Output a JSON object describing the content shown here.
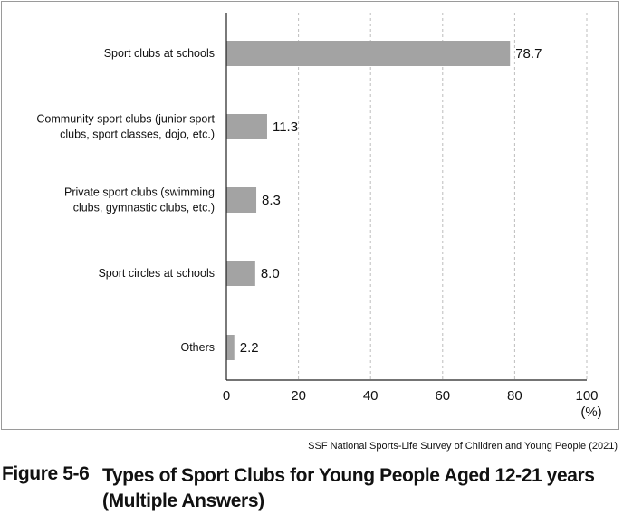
{
  "chart_data": {
    "type": "bar",
    "orientation": "horizontal",
    "categories": [
      [
        "Sport clubs at schools"
      ],
      [
        "Community sport clubs (junior sport",
        "clubs, sport classes, dojo, etc.)"
      ],
      [
        "Private sport clubs (swimming",
        "clubs, gymnastic clubs, etc.)"
      ],
      [
        "Sport circles at schools"
      ],
      [
        "Others"
      ]
    ],
    "values": [
      78.7,
      11.3,
      8.3,
      8.0,
      2.2
    ],
    "value_labels": [
      "78.7",
      "11.3",
      "8.3",
      "8.0",
      "2.2"
    ],
    "xlim": [
      0,
      100
    ],
    "xticks": [
      0,
      20,
      40,
      60,
      80,
      100
    ],
    "xtick_labels": [
      "0",
      "20",
      "40",
      "60",
      "80",
      "100"
    ],
    "xunit": "(%)",
    "grid": "vertical dashed",
    "bar_color": "#a3a3a3"
  },
  "source": "SSF National Sports-Life Survey of Children and Young People (2021)",
  "figure": {
    "number": "Figure 5-6",
    "title": "Types of Sport Clubs for Young People Aged 12-21 years (Multiple Answers)"
  }
}
